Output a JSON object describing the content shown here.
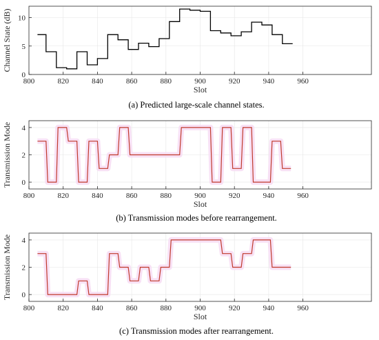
{
  "chart_data": [
    {
      "type": "line",
      "caption": "(a) Predicted large-scale channel states.",
      "xlabel": "Slot",
      "ylabel": "Channel State (dB)",
      "xlim": [
        800,
        1000
      ],
      "ylim": [
        0,
        12
      ],
      "xticks": [
        "800",
        "820",
        "840",
        "860",
        "880",
        "900",
        "920",
        "940",
        "960"
      ],
      "yticks": [
        "0",
        "5",
        "10"
      ],
      "line_color": "#000000",
      "series": [
        {
          "x": [
            805,
            810,
            810,
            816,
            816,
            822,
            822,
            828,
            828,
            834,
            834,
            840,
            840,
            846,
            846,
            852,
            852,
            858,
            858,
            864,
            864,
            870,
            870,
            876,
            876,
            882,
            882,
            888,
            888,
            894,
            894,
            900,
            900,
            906,
            906,
            912,
            912,
            918,
            918,
            924,
            924,
            930,
            930,
            936,
            936,
            942,
            942,
            948,
            948,
            954
          ],
          "y": [
            7,
            7,
            4,
            4,
            1.2,
            1.2,
            1,
            1,
            4,
            4,
            1.7,
            1.7,
            2.8,
            2.8,
            7,
            7,
            6.1,
            6.1,
            4.4,
            4.4,
            5.5,
            5.5,
            4.9,
            4.9,
            6.3,
            6.3,
            9.3,
            9.3,
            11.5,
            11.5,
            11.3,
            11.3,
            11.1,
            11.1,
            7.7,
            7.7,
            7.3,
            7.3,
            6.8,
            6.8,
            7.5,
            7.5,
            9.2,
            9.2,
            8.7,
            8.7,
            7,
            7,
            5.4,
            5.4
          ]
        }
      ]
    },
    {
      "type": "line",
      "caption": "(b) Transmission modes before rearrangement.",
      "xlabel": "Slot",
      "ylabel": "Transmission Mode",
      "xlim": [
        800,
        1000
      ],
      "ylim": [
        -0.5,
        4.5
      ],
      "xticks": [
        "800",
        "820",
        "840",
        "860",
        "880",
        "900",
        "920",
        "940",
        "960"
      ],
      "yticks": [
        "0",
        "2",
        "4"
      ],
      "line_color": "#c0392b",
      "shade_color": "#f7dcf3",
      "series": [
        {
          "x": [
            805,
            810,
            811,
            816,
            817,
            822,
            823,
            828,
            829,
            834,
            835,
            840,
            841,
            846,
            847,
            852,
            853,
            858,
            859,
            864,
            870,
            876,
            882,
            888,
            889,
            894,
            900,
            906,
            907,
            912,
            913,
            918,
            919,
            924,
            925,
            930,
            931,
            936,
            941,
            942,
            947,
            948,
            953
          ],
          "y": [
            3,
            3,
            0,
            0,
            4,
            4,
            3,
            3,
            0,
            0,
            3,
            3,
            1,
            1,
            2,
            2,
            4,
            4,
            2,
            2,
            2,
            2,
            2,
            2,
            4,
            4,
            4,
            4,
            0,
            0,
            4,
            4,
            1,
            1,
            4,
            4,
            0,
            0,
            0,
            3,
            3,
            1,
            1
          ]
        }
      ]
    },
    {
      "type": "line",
      "caption": "(c) Transmission modes after rearrangement.",
      "xlabel": "Slot",
      "ylabel": "Transmission Mode",
      "xlim": [
        800,
        1000
      ],
      "ylim": [
        -0.5,
        4.5
      ],
      "xticks": [
        "800",
        "820",
        "840",
        "860",
        "880",
        "900",
        "920",
        "940",
        "960"
      ],
      "yticks": [
        "0",
        "2",
        "4"
      ],
      "line_color": "#c0392b",
      "shade_color": "#f7dcf3",
      "series": [
        {
          "x": [
            805,
            810,
            811,
            816,
            822,
            828,
            829,
            834,
            835,
            840,
            846,
            847,
            852,
            853,
            858,
            859,
            864,
            865,
            870,
            871,
            876,
            877,
            882,
            883,
            888,
            894,
            900,
            906,
            912,
            913,
            918,
            919,
            924,
            925,
            930,
            931,
            936,
            941,
            942,
            948,
            953
          ],
          "y": [
            3,
            3,
            0,
            0,
            0,
            0,
            1,
            1,
            0,
            0,
            0,
            3,
            3,
            2,
            2,
            1,
            1,
            2,
            2,
            1,
            1,
            2,
            2,
            4,
            4,
            4,
            4,
            4,
            4,
            3,
            3,
            2,
            2,
            3,
            3,
            4,
            4,
            4,
            2,
            2,
            2
          ]
        }
      ]
    }
  ]
}
